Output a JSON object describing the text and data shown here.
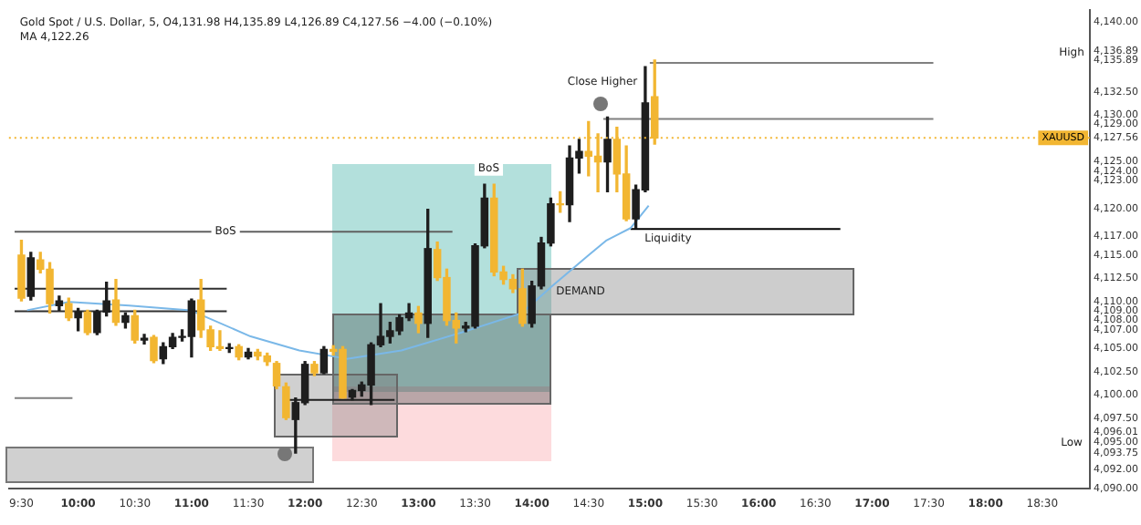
{
  "chart_data": {
    "type": "candlestick",
    "title": "Gold Spot / U.S. Dollar, 5, O4,131.98 H4,135.89 L4,126.89 C4,127.56 −4.00 (−0.10%)",
    "subtitle": "MA 4,122.26",
    "x": [
      9.5,
      9.583,
      9.667,
      9.75,
      9.833,
      9.917,
      10.0,
      10.083,
      10.167,
      10.25,
      10.333,
      10.417,
      10.5,
      10.583,
      10.667,
      10.75,
      10.833,
      10.917,
      11.0,
      11.083,
      11.167,
      11.25,
      11.333,
      11.417,
      11.5,
      11.583,
      11.667,
      11.75,
      11.833,
      11.917,
      12.0,
      12.083,
      12.167,
      12.25,
      12.333,
      12.417,
      12.5,
      12.583,
      12.667,
      12.75,
      12.833,
      12.917,
      13.0,
      13.083,
      13.167,
      13.25,
      13.333,
      13.417,
      13.5,
      13.583,
      13.667,
      13.75,
      13.833,
      13.917,
      14.0,
      14.083,
      14.167,
      14.25,
      14.333,
      14.417,
      14.5,
      14.583,
      14.667,
      14.75,
      14.833,
      14.917,
      15.0,
      15.083
    ],
    "ohlc": [
      [
        4115.0,
        4116.6,
        4110.1,
        4110.4
      ],
      [
        4110.6,
        4115.3,
        4110.2,
        4114.7
      ],
      [
        4114.5,
        4115.3,
        4113.1,
        4113.5
      ],
      [
        4113.5,
        4114.2,
        4108.8,
        4109.8
      ],
      [
        4109.6,
        4110.6,
        4109.1,
        4110.1
      ],
      [
        4109.8,
        4110.4,
        4108.0,
        4108.3
      ],
      [
        4108.3,
        4109.3,
        4106.9,
        4108.9
      ],
      [
        4108.9,
        4109.1,
        4106.5,
        4106.7
      ],
      [
        4106.7,
        4109.1,
        4106.5,
        4108.9
      ],
      [
        4108.9,
        4112.1,
        4108.5,
        4110.1
      ],
      [
        4110.2,
        4112.4,
        4107.5,
        4107.8
      ],
      [
        4107.8,
        4108.8,
        4107.2,
        4108.5
      ],
      [
        4108.5,
        4109.1,
        4105.6,
        4105.9
      ],
      [
        4105.9,
        4106.5,
        4105.5,
        4106.1
      ],
      [
        4106.2,
        4106.4,
        4103.5,
        4103.7
      ],
      [
        4103.9,
        4105.6,
        4103.4,
        4105.2
      ],
      [
        4105.2,
        4106.6,
        4105.0,
        4106.2
      ],
      [
        4106.2,
        4107.0,
        4105.8,
        4106.3
      ],
      [
        4106.3,
        4110.3,
        4104.1,
        4110.1
      ],
      [
        4110.2,
        4112.4,
        4106.2,
        4107.0
      ],
      [
        4107.0,
        4107.4,
        4104.8,
        4105.2
      ],
      [
        4105.2,
        4106.9,
        4104.8,
        4105.0
      ],
      [
        4105.0,
        4105.5,
        4104.6,
        4105.1
      ],
      [
        4105.2,
        4105.4,
        4103.8,
        4104.1
      ],
      [
        4104.1,
        4105.0,
        4103.9,
        4104.6
      ],
      [
        4104.6,
        4104.9,
        4103.8,
        4104.2
      ],
      [
        4104.2,
        4104.5,
        4103.2,
        4103.6
      ],
      [
        4103.4,
        4103.6,
        4100.7,
        4101.0
      ],
      [
        4100.9,
        4101.3,
        4097.4,
        4097.6
      ],
      [
        4097.4,
        4099.7,
        4093.8,
        4099.2
      ],
      [
        4099.2,
        4103.6,
        4099.0,
        4103.3
      ],
      [
        4103.3,
        4103.6,
        4102.1,
        4102.4
      ],
      [
        4102.4,
        4105.2,
        4102.3,
        4104.9
      ],
      [
        4104.9,
        4105.3,
        4104.3,
        4104.7
      ],
      [
        4104.9,
        4105.2,
        4099.7,
        4099.7
      ],
      [
        4099.8,
        4100.6,
        4099.5,
        4100.5
      ],
      [
        4100.5,
        4101.4,
        4099.9,
        4101.1
      ],
      [
        4101.1,
        4105.6,
        4099.0,
        4105.4
      ],
      [
        4105.4,
        4109.8,
        4105.2,
        4106.3
      ],
      [
        4106.3,
        4107.8,
        4105.6,
        4106.9
      ],
      [
        4106.9,
        4108.6,
        4106.5,
        4108.3
      ],
      [
        4108.3,
        4109.8,
        4108.0,
        4108.8
      ],
      [
        4108.8,
        4109.5,
        4106.7,
        4107.7
      ],
      [
        4107.7,
        4119.9,
        4106.2,
        4115.7
      ],
      [
        4115.6,
        4116.4,
        4112.3,
        4112.6
      ],
      [
        4112.6,
        4113.5,
        4107.5,
        4108.0
      ],
      [
        4108.0,
        4108.8,
        4105.6,
        4107.2
      ],
      [
        4107.2,
        4107.8,
        4106.8,
        4107.4
      ],
      [
        4107.4,
        4116.2,
        4107.2,
        4116.0
      ],
      [
        4116.0,
        4122.6,
        4115.8,
        4121.1
      ],
      [
        4121.1,
        4122.6,
        4112.8,
        4113.2
      ],
      [
        4113.2,
        4113.8,
        4111.9,
        4112.4
      ],
      [
        4112.4,
        4112.9,
        4111.0,
        4111.4
      ],
      [
        4111.4,
        4113.5,
        4107.4,
        4107.7
      ],
      [
        4107.7,
        4112.2,
        4107.3,
        4111.7
      ],
      [
        4111.7,
        4116.9,
        4111.4,
        4116.3
      ],
      [
        4116.3,
        4121.1,
        4116.0,
        4120.5
      ],
      [
        4120.5,
        4121.8,
        4119.6,
        4120.4
      ],
      [
        4120.4,
        4126.7,
        4118.6,
        4125.4
      ],
      [
        4125.4,
        4127.4,
        4123.8,
        4126.1
      ],
      [
        4126.1,
        4129.3,
        4123.5,
        4125.6
      ],
      [
        4125.6,
        4128.0,
        4121.8,
        4125.0
      ],
      [
        4125.0,
        4129.8,
        4121.8,
        4127.4
      ],
      [
        4127.4,
        4128.7,
        4121.8,
        4123.7
      ],
      [
        4123.7,
        4126.7,
        4118.7,
        4118.9
      ],
      [
        4118.9,
        4122.5,
        4117.9,
        4122.0
      ],
      [
        4122.0,
        4135.2,
        4121.8,
        4131.3
      ],
      [
        4131.98,
        4135.89,
        4126.89,
        4127.56
      ]
    ],
    "colors": [
      "#f2b632",
      "#1e1e1e",
      "#f2b632",
      "#f2b632",
      "#1e1e1e",
      "#f2b632",
      "#1e1e1e",
      "#f2b632",
      "#1e1e1e",
      "#1e1e1e",
      "#f2b632",
      "#1e1e1e",
      "#f2b632",
      "#1e1e1e",
      "#f2b632",
      "#1e1e1e",
      "#1e1e1e",
      "#1e1e1e",
      "#1e1e1e",
      "#f2b632",
      "#f2b632",
      "#f2b632",
      "#1e1e1e",
      "#f2b632",
      "#1e1e1e",
      "#f2b632",
      "#f2b632",
      "#f2b632",
      "#f2b632",
      "#1e1e1e",
      "#1e1e1e",
      "#f2b632",
      "#1e1e1e",
      "#f2b632",
      "#f2b632",
      "#1e1e1e",
      "#1e1e1e",
      "#1e1e1e",
      "#1e1e1e",
      "#1e1e1e",
      "#1e1e1e",
      "#1e1e1e",
      "#f2b632",
      "#1e1e1e",
      "#f2b632",
      "#f2b632",
      "#f2b632",
      "#1e1e1e",
      "#1e1e1e",
      "#1e1e1e",
      "#f2b632",
      "#f2b632",
      "#f2b632",
      "#f2b632",
      "#1e1e1e",
      "#1e1e1e",
      "#1e1e1e",
      "#f2b632",
      "#1e1e1e",
      "#1e1e1e",
      "#f2b632",
      "#f2b632",
      "#1e1e1e",
      "#f2b632",
      "#f2b632",
      "#1e1e1e",
      "#1e1e1e",
      "#f2b632"
    ],
    "series": [
      {
        "type": "line",
        "color": "#7ab8e8",
        "x": [
          9.55,
          9.92,
          10.45,
          10.99,
          11.52,
          11.95,
          12.37,
          12.85,
          13.43,
          13.91,
          14.18,
          14.5,
          14.66,
          14.87,
          15.03
        ],
        "values": [
          4109.1,
          4110.0,
          4109.6,
          4109.1,
          4106.3,
          4104.8,
          4103.9,
          4104.8,
          4106.9,
          4108.8,
          4111.7,
          4115.0,
          4116.6,
          4117.9,
          4120.3
        ]
      },
      {
        "type": "line",
        "color": "#606060",
        "x": [
          9.44,
          13.3
        ],
        "values": [
          4117.5,
          4117.5
        ]
      },
      {
        "type": "line",
        "color": "#303030",
        "x": [
          9.44,
          11.31
        ],
        "values": [
          4111.4,
          4111.4
        ]
      },
      {
        "type": "line",
        "color": "#303030",
        "x": [
          9.44,
          11.31
        ],
        "values": [
          4109.0,
          4109.0
        ]
      },
      {
        "type": "line",
        "color": "#808080",
        "x": [
          9.44,
          9.95
        ],
        "values": [
          4099.7,
          4099.7
        ]
      },
      {
        "type": "line",
        "color": "#1e1e1e",
        "x": [
          11.86,
          12.79
        ],
        "values": [
          4099.5,
          4099.5
        ]
      },
      {
        "type": "line",
        "color": "#808080",
        "x": [
          15.04,
          17.54
        ],
        "values": [
          4135.6,
          4135.6
        ]
      },
      {
        "type": "line",
        "color": "#808080",
        "x": [
          14.63,
          17.54
        ],
        "values": [
          4129.6,
          4129.6
        ]
      },
      {
        "type": "line",
        "color": "#000000",
        "x": [
          14.87,
          16.72
        ],
        "values": [
          4117.8,
          4117.8
        ]
      }
    ],
    "annotations": [
      {
        "text": "BoS",
        "x": 11.3,
        "y": 4117.5
      },
      {
        "text": "BoS",
        "x": 13.62,
        "y": 4124.3
      },
      "DEMAND",
      "Liquidity",
      "Close Higher",
      "High",
      "Low"
    ],
    "ref_lines": [
      {
        "axis": "y",
        "value": 4127.56,
        "label": "XAUUSD",
        "color": "#f2b632",
        "line_style": "dotted"
      }
    ],
    "xlim": [
      9.39,
      18.92
    ],
    "xticks": [
      {
        "value": 9.5,
        "label": "9:30"
      },
      {
        "value": 10,
        "label": "10:00"
      },
      {
        "value": 10.5,
        "label": "10:30"
      },
      {
        "value": 11,
        "label": "11:00"
      },
      {
        "value": 11.5,
        "label": "11:30"
      },
      {
        "value": 12,
        "label": "12:00"
      },
      {
        "value": 12.5,
        "label": "12:30"
      },
      {
        "value": 13,
        "label": "13:00"
      },
      {
        "value": 13.5,
        "label": "13:30"
      },
      {
        "value": 14,
        "label": "14:00"
      },
      {
        "value": 14.5,
        "label": "14:30"
      },
      {
        "value": 15,
        "label": "15:00"
      },
      {
        "value": 15.5,
        "label": "15:30"
      },
      {
        "value": 16,
        "label": "16:00"
      },
      {
        "value": 16.5,
        "label": "16:30"
      },
      {
        "value": 17,
        "label": "17:00"
      },
      {
        "value": 17.5,
        "label": "17:30"
      },
      {
        "value": 18,
        "label": "18:00"
      },
      {
        "value": 18.5,
        "label": "18:30"
      }
    ],
    "ylim": [
      4090,
      4141.3
    ],
    "yticks": [
      {
        "value": 4090,
        "label": "4,090.00"
      },
      {
        "value": 4092,
        "label": "4,092.00"
      },
      {
        "value": 4093.75,
        "label": "4,093.75"
      },
      {
        "value": 4095,
        "label": "4,095.00"
      },
      {
        "value": 4096.01,
        "label": "4,096.01"
      },
      {
        "value": 4097.5,
        "label": "4,097.50"
      },
      {
        "value": 4100,
        "label": "4,100.00"
      },
      {
        "value": 4102.5,
        "label": "4,102.50"
      },
      {
        "value": 4105,
        "label": "4,105.00"
      },
      {
        "value": 4107,
        "label": "4,107.00"
      },
      {
        "value": 4108,
        "label": "4,108.00"
      },
      {
        "value": 4109,
        "label": "4,109.00"
      },
      {
        "value": 4110,
        "label": "4,110.00"
      },
      {
        "value": 4112.5,
        "label": "4,112.50"
      },
      {
        "value": 4115,
        "label": "4,115.00"
      },
      {
        "value": 4117,
        "label": "4,117.00"
      },
      {
        "value": 4120,
        "label": "4,120.00"
      },
      {
        "value": 4123,
        "label": "4,123.00"
      },
      {
        "value": 4124,
        "label": "4,124.00"
      },
      {
        "value": 4125,
        "label": "4,125.00"
      },
      {
        "value": 4127.56,
        "label": "4,127.56"
      },
      {
        "value": 4129,
        "label": "4,129.00"
      },
      {
        "value": 4130,
        "label": "4,130.00"
      },
      {
        "value": 4132.5,
        "label": "4,132.50"
      },
      {
        "value": 4135.89,
        "label": "4,135.89"
      },
      {
        "value": 4136.89,
        "label": "4,136.89"
      },
      {
        "value": 4140,
        "label": "4,140.00"
      }
    ]
  }
}
